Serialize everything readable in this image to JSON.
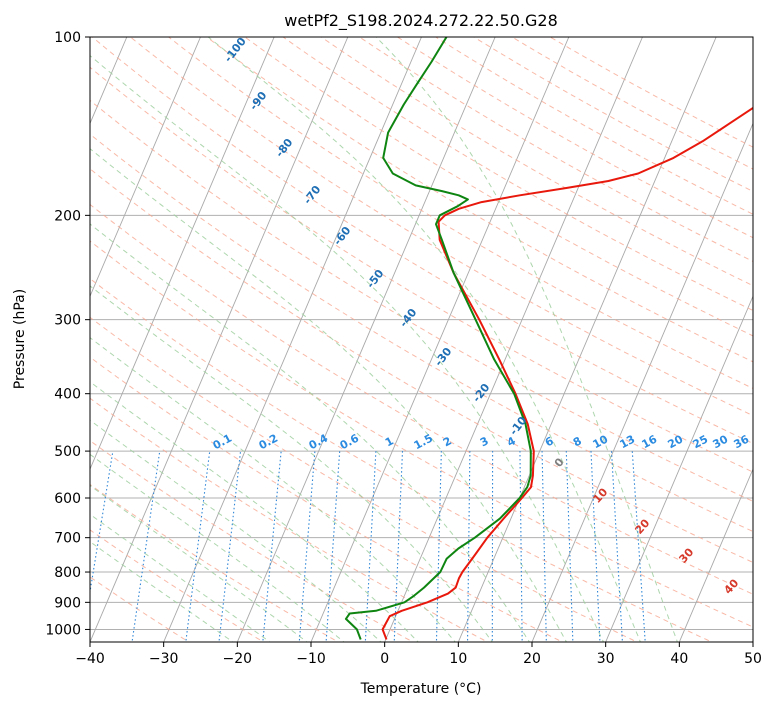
{
  "chart_data": {
    "type": "line",
    "title": "wetPf2_S198.2024.272.22.50.G28",
    "xlabel": "Temperature (°C)",
    "ylabel": "Pressure (hPa)",
    "xlim": [
      -40,
      50
    ],
    "ylim": [
      1050,
      100
    ],
    "y_scale": "log",
    "grid": true,
    "x_ticks": [
      -40,
      -30,
      -20,
      -10,
      0,
      10,
      20,
      30,
      40,
      50
    ],
    "x_tick_labels": [
      "−40",
      "−30",
      "−20",
      "−10",
      "0",
      "10",
      "20",
      "30",
      "40",
      "50"
    ],
    "y_ticks": [
      100,
      200,
      300,
      400,
      500,
      600,
      700,
      800,
      900,
      1000
    ],
    "y_tick_labels": [
      "100",
      "200",
      "300",
      "400",
      "500",
      "600",
      "700",
      "800",
      "900",
      "1000"
    ],
    "series": [
      {
        "color": "#e8180c",
        "points": [
          [
            1040,
            0.1
          ],
          [
            1000,
            -1.0
          ],
          [
            950,
            -0.8
          ],
          [
            930,
            0.5
          ],
          [
            900,
            3.5
          ],
          [
            870,
            5.8
          ],
          [
            850,
            6.5
          ],
          [
            820,
            6.4
          ],
          [
            800,
            6.5
          ],
          [
            750,
            7.2
          ],
          [
            700,
            7.9
          ],
          [
            650,
            9.0
          ],
          [
            600,
            10.3
          ],
          [
            575,
            10.9
          ],
          [
            550,
            10.5
          ],
          [
            500,
            9.2
          ],
          [
            450,
            6.8
          ],
          [
            400,
            3.4
          ],
          [
            350,
            -0.8
          ],
          [
            300,
            -5.8
          ],
          [
            250,
            -12.0
          ],
          [
            220,
            -15.8
          ],
          [
            205,
            -17.0
          ],
          [
            200,
            -16.5
          ],
          [
            195,
            -15.0
          ],
          [
            190,
            -12.3
          ],
          [
            185,
            -7.5
          ],
          [
            180,
            -1.8
          ],
          [
            175,
            3.7
          ],
          [
            170,
            7.3
          ],
          [
            160,
            11.2
          ],
          [
            150,
            14.2
          ],
          [
            140,
            16.8
          ],
          [
            130,
            19.6
          ],
          [
            120,
            22.9
          ],
          [
            110,
            26.0
          ],
          [
            100,
            28.7
          ]
        ]
      },
      {
        "color": "#0f8511",
        "points": [
          [
            1040,
            -3.4
          ],
          [
            1000,
            -4.5
          ],
          [
            960,
            -6.6
          ],
          [
            940,
            -6.4
          ],
          [
            930,
            -3.0
          ],
          [
            900,
            0.4
          ],
          [
            880,
            1.2
          ],
          [
            850,
            2.2
          ],
          [
            800,
            3.5
          ],
          [
            760,
            3.6
          ],
          [
            730,
            4.6
          ],
          [
            700,
            6.2
          ],
          [
            650,
            8.5
          ],
          [
            600,
            10.0
          ],
          [
            575,
            10.4
          ],
          [
            550,
            10.2
          ],
          [
            500,
            8.8
          ],
          [
            450,
            6.5
          ],
          [
            400,
            3.2
          ],
          [
            350,
            -1.5
          ],
          [
            300,
            -6.3
          ],
          [
            250,
            -12.0
          ],
          [
            220,
            -15.5
          ],
          [
            207,
            -17.2
          ],
          [
            200,
            -17.2
          ],
          [
            193,
            -15.3
          ],
          [
            188,
            -14.3
          ],
          [
            185,
            -15.8
          ],
          [
            182,
            -18.3
          ],
          [
            178,
            -22.2
          ],
          [
            170,
            -26.0
          ],
          [
            160,
            -28.2
          ],
          [
            145,
            -29.0
          ],
          [
            130,
            -28.5
          ],
          [
            120,
            -27.9
          ],
          [
            110,
            -27.2
          ],
          [
            100,
            -26.6
          ]
        ]
      }
    ],
    "dry_adiabat_labels": [
      "-100",
      "-90",
      "-80",
      "-70",
      "-60",
      "-50",
      "-40",
      "-30",
      "-20",
      "-10",
      "0",
      "10",
      "20",
      "30",
      "40"
    ],
    "mixing_ratio_labels": [
      "0.1",
      "0.2",
      "0.4",
      "0.6",
      "1",
      "1.5",
      "2",
      "3",
      "4",
      "6",
      "8",
      "10",
      "13",
      "16",
      "20",
      "25",
      "30",
      "36"
    ]
  },
  "colors": {
    "isobar_grid": "#b0b0b0",
    "isotherm_grid": "#a9a9a9",
    "dry_adiabat": "#f7a791",
    "moist_adiabat": "#9fcf9f",
    "mixing_ratio": "#2f86d6",
    "label_blue": "#1f6fb5",
    "label_red": "#d6392a",
    "label_gray": "#7f7f7f",
    "label_light_blue": "#2b8be0"
  }
}
